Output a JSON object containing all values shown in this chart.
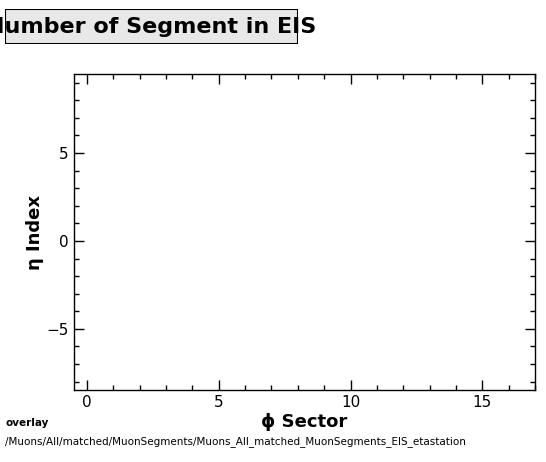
{
  "title": "Number of Segment in EIS",
  "xlabel": "ϕ Sector",
  "ylabel": "η Index",
  "xlim": [
    -0.5,
    17
  ],
  "ylim": [
    -8.5,
    9.5
  ],
  "xticks": [
    0,
    5,
    10,
    15
  ],
  "yticks": [
    -5,
    0,
    5
  ],
  "background_color": "#ffffff",
  "plot_bg_color": "#ffffff",
  "footer_line1": "overlay",
  "footer_line2": "/Muons/All/matched/MuonSegments/Muons_All_matched_MuonSegments_EIS_etastation",
  "title_fontsize": 16,
  "axis_label_fontsize": 13,
  "tick_fontsize": 11,
  "footer_fontsize": 7.5
}
